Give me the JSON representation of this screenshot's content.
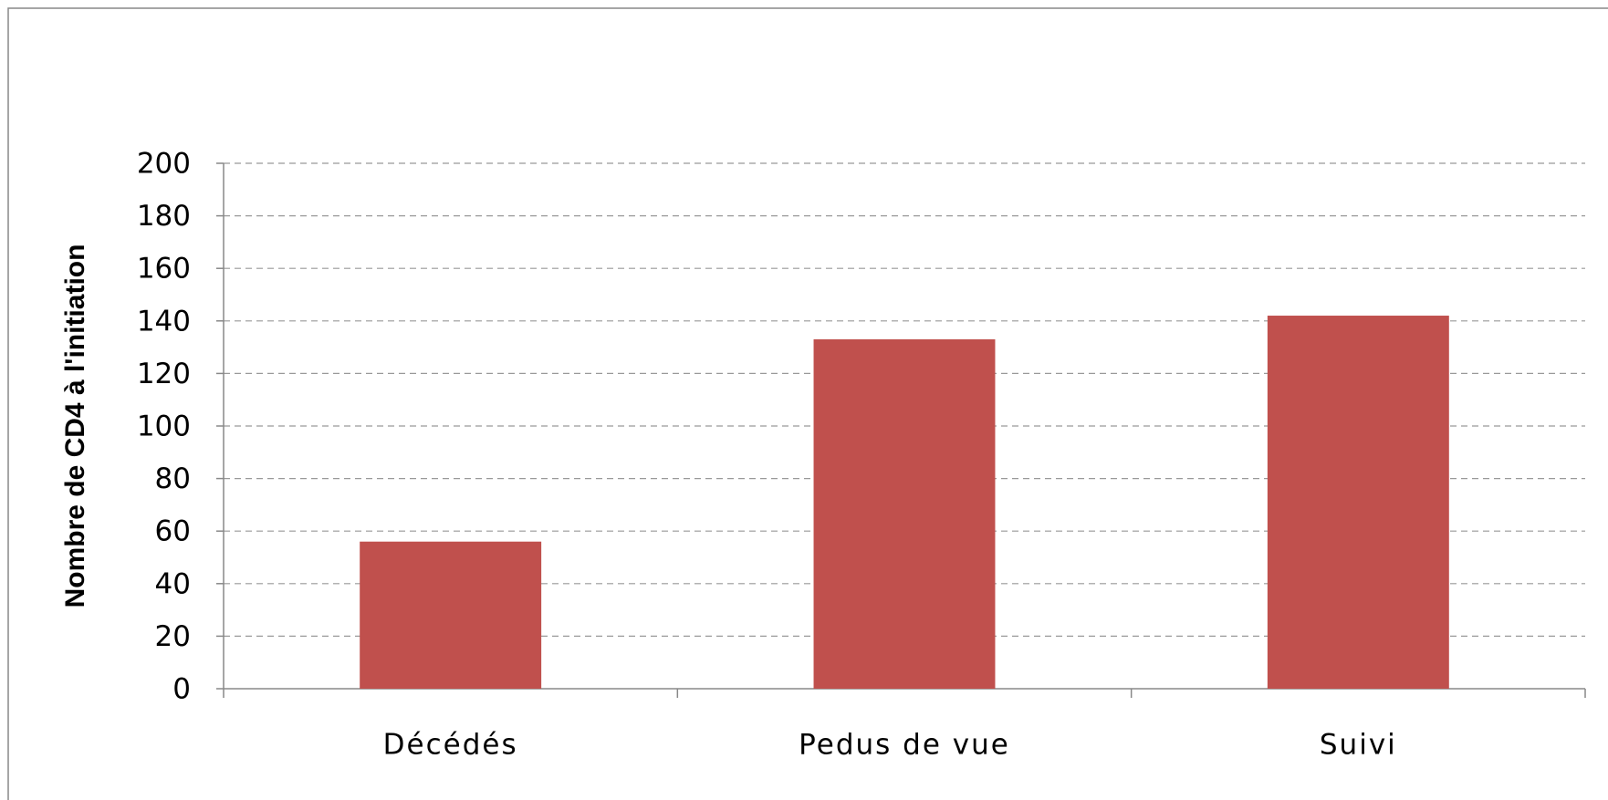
{
  "chart_data": {
    "type": "bar",
    "y_axis_label": "Nombre de CD4 à l'initiation",
    "categories": [
      "Décédés",
      "Pedus de vue",
      "Suivi"
    ],
    "values": [
      56,
      133,
      142
    ],
    "color": "#c0504d",
    "ylim": [
      0,
      200
    ],
    "yticks": [
      0,
      20,
      40,
      60,
      80,
      100,
      120,
      140,
      160,
      180,
      200
    ],
    "grid": true
  }
}
